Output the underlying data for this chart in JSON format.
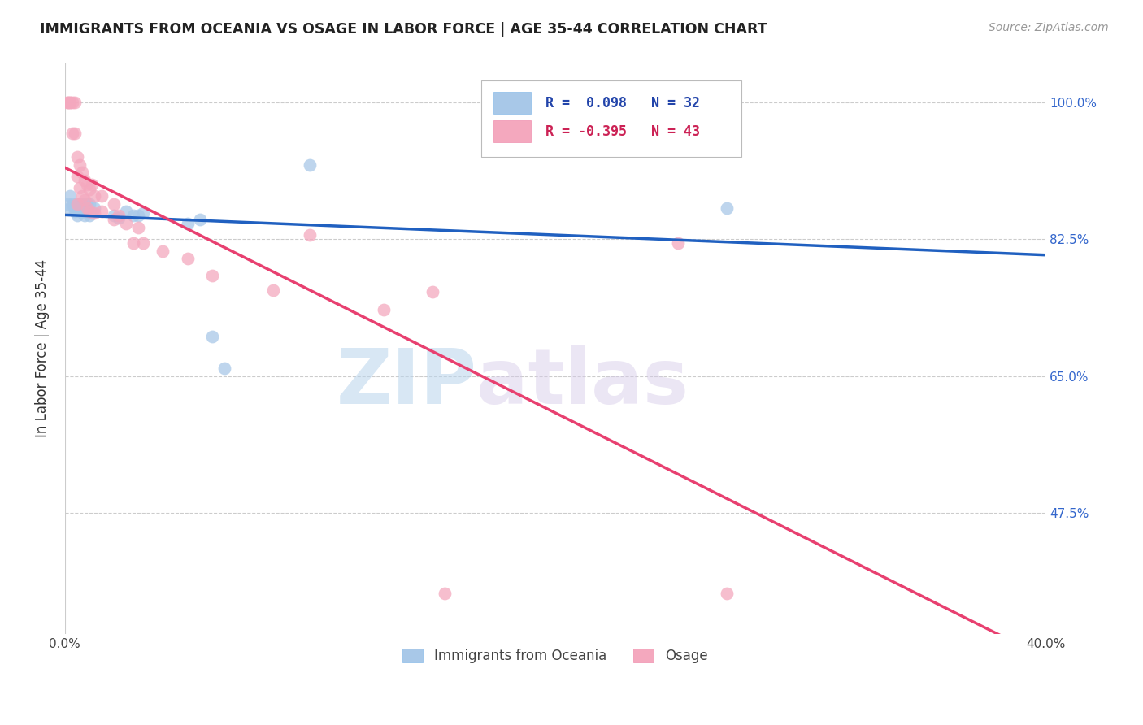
{
  "title": "IMMIGRANTS FROM OCEANIA VS OSAGE IN LABOR FORCE | AGE 35-44 CORRELATION CHART",
  "source": "Source: ZipAtlas.com",
  "ylabel": "In Labor Force | Age 35-44",
  "legend_blue_label": "Immigrants from Oceania",
  "legend_pink_label": "Osage",
  "legend_blue_r": "R =  0.098",
  "legend_blue_n": "N = 32",
  "legend_pink_r": "R = -0.395",
  "legend_pink_n": "N = 43",
  "blue_color": "#A8C8E8",
  "pink_color": "#F4A8BE",
  "blue_line_color": "#2060C0",
  "pink_line_color": "#E84070",
  "watermark_zip": "ZIP",
  "watermark_atlas": "atlas",
  "blue_points_x": [
    0.001,
    0.002,
    0.002,
    0.003,
    0.004,
    0.004,
    0.005,
    0.005,
    0.006,
    0.006,
    0.007,
    0.007,
    0.008,
    0.008,
    0.009,
    0.009,
    0.01,
    0.01,
    0.011,
    0.012,
    0.02,
    0.022,
    0.025,
    0.028,
    0.03,
    0.032,
    0.05,
    0.055,
    0.06,
    0.065,
    0.1,
    0.27
  ],
  "blue_points_y": [
    0.87,
    0.88,
    0.865,
    0.87,
    0.86,
    0.865,
    0.87,
    0.855,
    0.87,
    0.86,
    0.87,
    0.86,
    0.87,
    0.855,
    0.87,
    0.86,
    0.87,
    0.855,
    0.858,
    0.865,
    0.855,
    0.852,
    0.86,
    0.855,
    0.855,
    0.858,
    0.845,
    0.85,
    0.7,
    0.66,
    0.92,
    0.865
  ],
  "pink_points_x": [
    0.001,
    0.001,
    0.002,
    0.002,
    0.003,
    0.003,
    0.004,
    0.004,
    0.005,
    0.005,
    0.005,
    0.006,
    0.006,
    0.007,
    0.007,
    0.008,
    0.008,
    0.009,
    0.009,
    0.01,
    0.01,
    0.011,
    0.012,
    0.012,
    0.015,
    0.015,
    0.02,
    0.02,
    0.022,
    0.025,
    0.028,
    0.03,
    0.032,
    0.04,
    0.05,
    0.06,
    0.085,
    0.1,
    0.13,
    0.15,
    0.155,
    0.25,
    0.27
  ],
  "pink_points_y": [
    1.0,
    1.0,
    1.0,
    1.0,
    1.0,
    0.96,
    1.0,
    0.96,
    0.93,
    0.905,
    0.87,
    0.92,
    0.89,
    0.91,
    0.88,
    0.9,
    0.875,
    0.895,
    0.865,
    0.888,
    0.86,
    0.895,
    0.88,
    0.858,
    0.88,
    0.86,
    0.87,
    0.85,
    0.855,
    0.845,
    0.82,
    0.84,
    0.82,
    0.81,
    0.8,
    0.778,
    0.76,
    0.83,
    0.735,
    0.758,
    0.372,
    0.82,
    0.372
  ],
  "xlim": [
    0.0,
    0.4
  ],
  "ylim": [
    0.32,
    1.05
  ],
  "ytick_values": [
    1.0,
    0.825,
    0.65,
    0.475
  ],
  "ytick_labels": [
    "100.0%",
    "82.5%",
    "65.0%",
    "47.5%"
  ],
  "xtick_positions": [
    0.0,
    0.1,
    0.2,
    0.3,
    0.4
  ],
  "xtick_labels": [
    "0.0%",
    "",
    "",
    "",
    "40.0%"
  ]
}
